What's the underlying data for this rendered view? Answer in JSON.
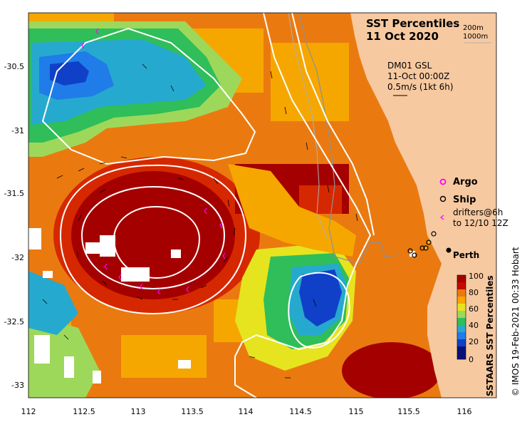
{
  "title": {
    "line1": "SST Percentiles",
    "line2": "11 Oct 2020"
  },
  "depth_legend": {
    "line1": "200m",
    "line2": "1000m"
  },
  "current_info": {
    "line1": "DM01 GSL",
    "line2": "11-Oct 00:00Z",
    "line3": "0.5m/s (1kt 6h)"
  },
  "legend": {
    "argo": "Argo",
    "ship": "Ship",
    "drifters_line1": "drifters@6h",
    "drifters_line2": "to 12/10 12Z",
    "argo_color": "#ff00ff",
    "drifter_color": "#ff00ff"
  },
  "place_label": "Perth",
  "colorbar": {
    "title": "SSTAARS SST Percentiles",
    "ticks": [
      "100",
      "80",
      "60",
      "40",
      "20",
      "0"
    ]
  },
  "credit": "© IMOS 19-Feb-2021 00:33 Hobart",
  "axes": {
    "x_ticks": [
      "112",
      "112.5",
      "113",
      "113.5",
      "114",
      "114.5",
      "115",
      "115.5",
      "116"
    ],
    "y_ticks": [
      "-30.5",
      "-31",
      "-31.5",
      "-32",
      "-32.5",
      "-33"
    ]
  },
  "colors": {
    "land": "#f7c9a0",
    "c100": "#a50000",
    "c90": "#d62800",
    "c80": "#ea7a10",
    "c70": "#f5a700",
    "c60": "#e6e41e",
    "c50": "#9ed85a",
    "c40": "#2fbe5a",
    "c30": "#26a9cf",
    "c20": "#1f7ce8",
    "c10": "#1040c8",
    "c0": "#08117a"
  }
}
